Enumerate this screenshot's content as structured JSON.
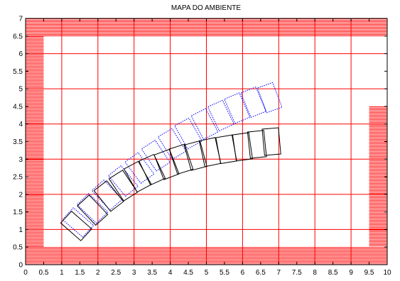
{
  "chart_data": {
    "type": "scatter",
    "title": "MAPA DO AMBIENTE",
    "xlabel": "",
    "ylabel": "",
    "xlim": [
      0,
      10
    ],
    "ylim": [
      0,
      7
    ],
    "grid": true,
    "xticks": [
      "0",
      "0.5",
      "1",
      "1.5",
      "2",
      "2.5",
      "3",
      "3.5",
      "4",
      "4.5",
      "5",
      "5.5",
      "6",
      "6.5",
      "7",
      "7.5",
      "8",
      "8.5",
      "9",
      "9.5",
      "10"
    ],
    "yticks": [
      "0",
      "0.5",
      "1",
      "1.5",
      "2",
      "2.5",
      "3",
      "3.5",
      "4",
      "4.5",
      "5",
      "5.5",
      "6",
      "6.5",
      "7"
    ],
    "colors": {
      "walls": "#ff0000",
      "grid": "#ff0000",
      "solid": "#000000",
      "dotted": "#0000ff"
    },
    "walls": [
      {
        "x": [
          0,
          10
        ],
        "y": [
          6.5,
          7.0
        ]
      },
      {
        "x": [
          0,
          10
        ],
        "y": [
          0,
          0.5
        ]
      },
      {
        "x": [
          0,
          0.5
        ],
        "y": [
          0.5,
          6.5
        ]
      },
      {
        "x": [
          9.5,
          10
        ],
        "y": [
          0.5,
          4.5
        ]
      }
    ],
    "solid_boxes": [
      {
        "cx": 1.4,
        "cy": 1.1,
        "angle": 48
      },
      {
        "cx": 1.85,
        "cy": 1.55,
        "angle": 43
      },
      {
        "cx": 2.3,
        "cy": 1.95,
        "angle": 38
      },
      {
        "cx": 2.7,
        "cy": 2.25,
        "angle": 33
      },
      {
        "cx": 3.1,
        "cy": 2.5,
        "angle": 29
      },
      {
        "cx": 3.5,
        "cy": 2.7,
        "angle": 25
      },
      {
        "cx": 3.9,
        "cy": 2.85,
        "angle": 21
      },
      {
        "cx": 4.3,
        "cy": 3.0,
        "angle": 18
      },
      {
        "cx": 4.7,
        "cy": 3.1,
        "angle": 15
      },
      {
        "cx": 5.1,
        "cy": 3.2,
        "angle": 12
      },
      {
        "cx": 5.55,
        "cy": 3.28,
        "angle": 10
      },
      {
        "cx": 6.0,
        "cy": 3.35,
        "angle": 8
      },
      {
        "cx": 6.4,
        "cy": 3.42,
        "angle": 6
      },
      {
        "cx": 6.8,
        "cy": 3.5,
        "angle": 5
      }
    ],
    "dotted_boxes": [
      {
        "cx": 1.45,
        "cy": 1.2,
        "angle": 48
      },
      {
        "cx": 1.85,
        "cy": 1.6,
        "angle": 45
      },
      {
        "cx": 2.25,
        "cy": 1.98,
        "angle": 42
      },
      {
        "cx": 2.7,
        "cy": 2.38,
        "angle": 39
      },
      {
        "cx": 3.15,
        "cy": 2.75,
        "angle": 36
      },
      {
        "cx": 3.6,
        "cy": 3.1,
        "angle": 33
      },
      {
        "cx": 4.05,
        "cy": 3.43,
        "angle": 31
      },
      {
        "cx": 4.5,
        "cy": 3.73,
        "angle": 29
      },
      {
        "cx": 4.95,
        "cy": 4.0,
        "angle": 27
      },
      {
        "cx": 5.4,
        "cy": 4.24,
        "angle": 25
      },
      {
        "cx": 5.85,
        "cy": 4.45,
        "angle": 23
      },
      {
        "cx": 6.3,
        "cy": 4.62,
        "angle": 22
      },
      {
        "cx": 6.75,
        "cy": 4.75,
        "angle": 20
      }
    ],
    "box_size": {
      "w": 0.45,
      "h": 0.75
    }
  }
}
